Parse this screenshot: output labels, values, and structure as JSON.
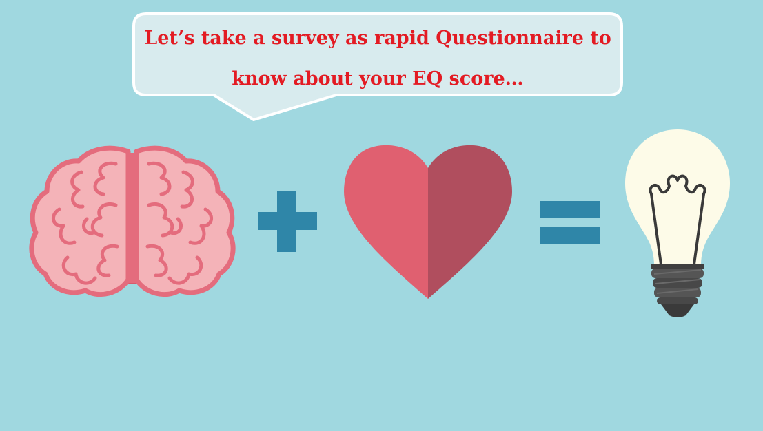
{
  "bubble": {
    "line1": "Let’s take a survey as rapid Questionnaire to",
    "line2": "know about your EQ score…"
  },
  "equation": {
    "terms": [
      "brain-icon",
      "plus-icon",
      "heart-icon",
      "equals-icon",
      "light-bulb-icon"
    ]
  },
  "colors": {
    "background": "#a0d8e0",
    "bubble_fill": "#d8ebee",
    "text": "#e31b23",
    "brain": "#f4b3b8",
    "brain_outline": "#e46c7d",
    "heart_left": "#e06070",
    "heart_right": "#b04e5e",
    "operator": "#2f86a8",
    "bulb": "#fdfbe8",
    "bulb_base": "#4a4a4a"
  }
}
